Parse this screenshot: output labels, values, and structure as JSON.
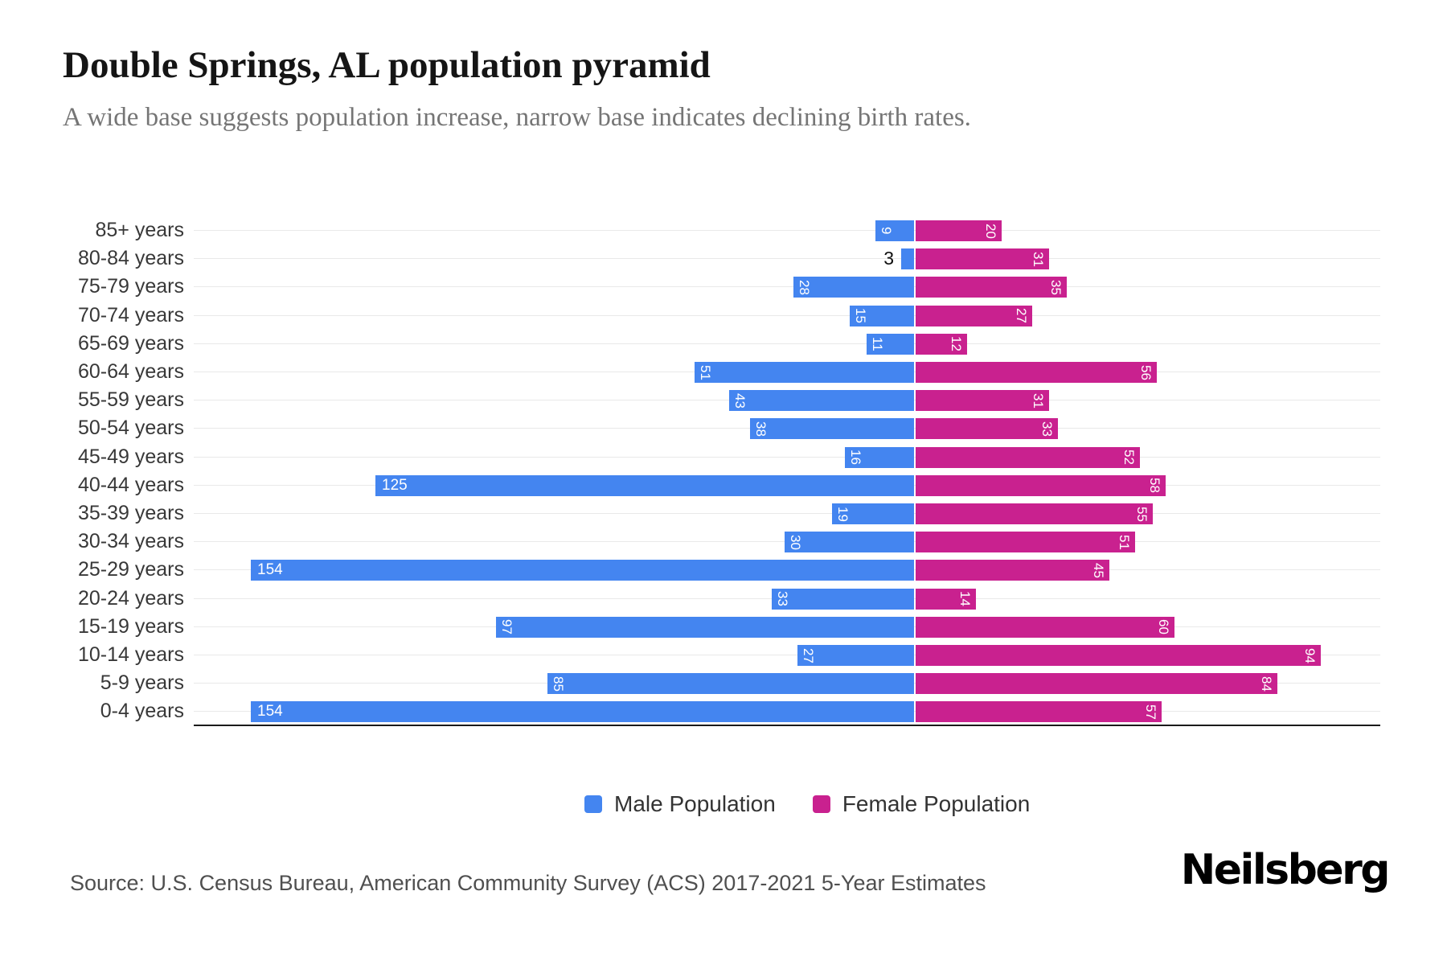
{
  "header": {
    "title": "Double Springs, AL population pyramid",
    "subtitle": "A wide base suggests population increase, narrow base indicates declining birth rates."
  },
  "legend": {
    "male": "Male Population",
    "female": "Female Population"
  },
  "footer": {
    "source": "Source: U.S. Census Bureau, American Community Survey (ACS) 2017-2021 5-Year Estimates",
    "brand": "Neilsberg"
  },
  "chart_data": {
    "type": "bar",
    "subtype": "population-pyramid",
    "title": "Double Springs, AL population pyramid",
    "categories": [
      "85+ years",
      "80-84 years",
      "75-79 years",
      "70-74 years",
      "65-69 years",
      "60-64 years",
      "55-59 years",
      "50-54 years",
      "45-49 years",
      "40-44 years",
      "35-39 years",
      "30-34 years",
      "25-29 years",
      "20-24 years",
      "15-19 years",
      "10-14 years",
      "5-9 years",
      "0-4 years"
    ],
    "series": [
      {
        "name": "Male Population",
        "color": "#4485f0",
        "values": [
          9,
          3,
          28,
          15,
          11,
          51,
          43,
          38,
          16,
          125,
          19,
          30,
          154,
          33,
          97,
          27,
          85,
          154
        ]
      },
      {
        "name": "Female Population",
        "color": "#c9218f",
        "values": [
          20,
          31,
          35,
          27,
          12,
          56,
          31,
          33,
          52,
          58,
          55,
          51,
          45,
          14,
          60,
          94,
          84,
          57
        ]
      }
    ],
    "value_labels": "on-bars",
    "grid": "horizontal-light",
    "legend_position": "bottom",
    "axis_line_color": "#1a1a1a",
    "gridline_color": "#e9e9e9"
  }
}
